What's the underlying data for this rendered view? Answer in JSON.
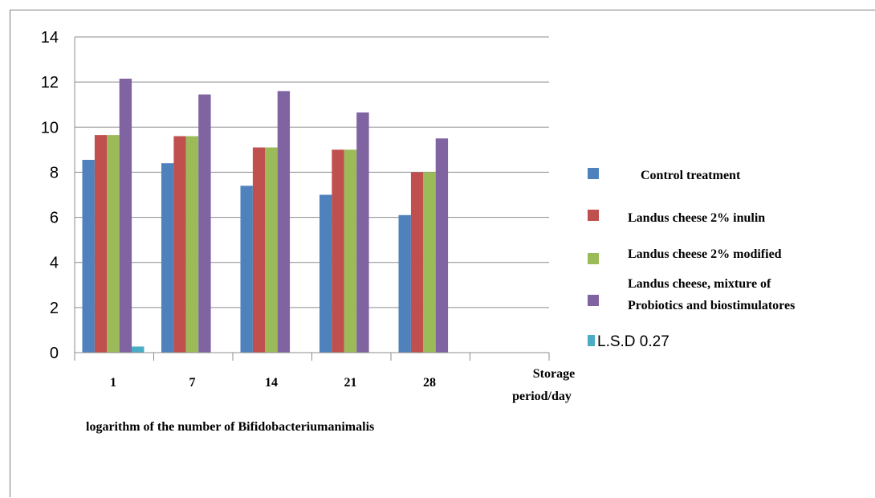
{
  "chart_data": {
    "type": "bar",
    "categories": [
      "1",
      "7",
      "14",
      "21",
      "28"
    ],
    "series": [
      {
        "name": "Control treatment",
        "color": "#4f81bd",
        "values": [
          8.55,
          8.4,
          7.4,
          7.0,
          6.1
        ]
      },
      {
        "name": "Landus cheese 2% inulin",
        "color": "#c0504d",
        "values": [
          9.65,
          9.6,
          9.1,
          9.0,
          8.0
        ]
      },
      {
        "name": "Landus cheese 2% modified",
        "color": "#9bbb59",
        "values": [
          9.65,
          9.6,
          9.1,
          9.0,
          8.0
        ]
      },
      {
        "name": "Landus cheese, mixture of Probiotics and biostimulatores",
        "name_lines": [
          "Landus cheese, mixture of",
          "Probiotics and biostimulatores"
        ],
        "color": "#8064a2",
        "values": [
          12.15,
          11.45,
          11.6,
          10.65,
          9.5
        ]
      },
      {
        "name": "L.S.D 0.27",
        "color": "#4bacc6",
        "values": [
          0.27,
          null,
          null,
          null,
          null
        ]
      }
    ],
    "ylim": [
      0,
      14
    ],
    "yticks": [
      "0",
      "2",
      "4",
      "6",
      "8",
      "10",
      "12",
      "14"
    ],
    "xlabel_lines": [
      "Storage",
      "period/day"
    ],
    "caption": "logarithm of the number  of Bifidobacteriumanimalis",
    "grid": true,
    "legend_position": "right"
  }
}
